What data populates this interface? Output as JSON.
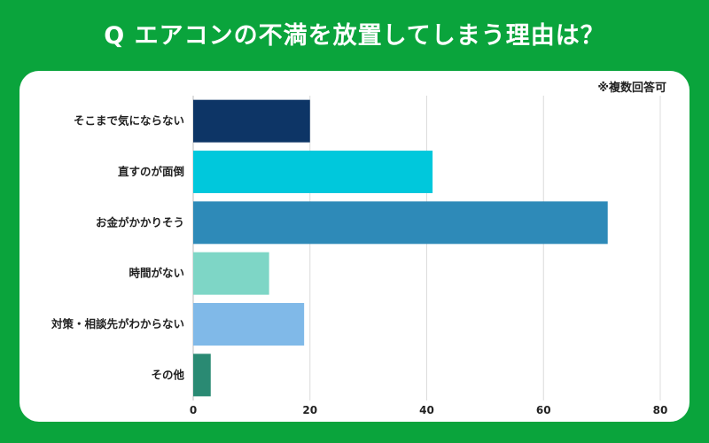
{
  "title": "Q エアコンの不満を放置してしまう理由は？",
  "note": "※複数回答可",
  "chart_data": {
    "type": "bar",
    "orientation": "horizontal",
    "categories": [
      "そこまで気にならない",
      "直すのが面倒",
      "お金がかかりそう",
      "時間がない",
      "対策・相談先がわからない",
      "その他"
    ],
    "values": [
      20,
      41,
      71,
      13,
      19,
      3
    ],
    "colors": [
      "#0d3566",
      "#00c8dc",
      "#2e8ab8",
      "#7ed6c6",
      "#80b9e8",
      "#2a8a73"
    ],
    "xlim": [
      0,
      80
    ],
    "xticks": [
      0,
      20,
      40,
      60,
      80
    ],
    "xtick_labels": [
      "0",
      "20",
      "40",
      "60",
      "80"
    ],
    "grid": true
  }
}
